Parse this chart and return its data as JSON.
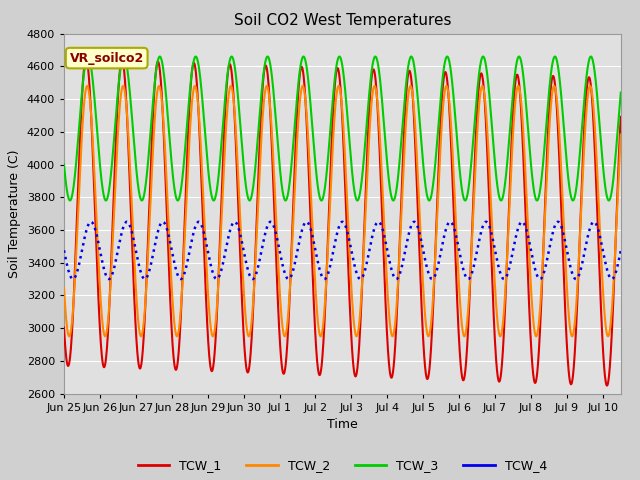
{
  "title": "Soil CO2 West Temperatures",
  "xlabel": "Time",
  "ylabel": "Soil Temperature (C)",
  "ylim": [
    2600,
    4800
  ],
  "annotation": "VR_soilco2",
  "legend_labels": [
    "TCW_1",
    "TCW_2",
    "TCW_3",
    "TCW_4"
  ],
  "colors": {
    "TCW_1": "#dd0000",
    "TCW_2": "#ff8800",
    "TCW_3": "#00cc00",
    "TCW_4": "#0000ee"
  },
  "tick_labels": [
    "Jun 25",
    "Jun 26",
    "Jun 27",
    "Jun 28",
    "Jun 29",
    "Jun 30",
    "Jul 1",
    "Jul 2",
    "Jul 3",
    "Jul 4",
    "Jul 5",
    "Jul 6",
    "Jul 7",
    "Jul 8",
    "Jul 9",
    "Jul 10"
  ],
  "yticks": [
    2600,
    2800,
    3000,
    3200,
    3400,
    3600,
    3800,
    4000,
    4200,
    4400,
    4600,
    4800
  ],
  "xlim": [
    0,
    15.5
  ],
  "figsize": [
    6.4,
    4.8
  ],
  "dpi": 100,
  "fig_bg": "#d0d0d0",
  "ax_bg": "#e0e0e0",
  "grid_color": "#ffffff",
  "annotation_facecolor": "#ffffcc",
  "annotation_edgecolor": "#aaaa00",
  "annotation_textcolor": "#880000"
}
